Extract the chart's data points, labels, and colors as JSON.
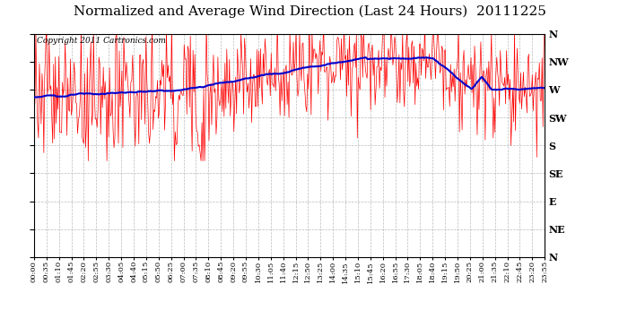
{
  "title": "Normalized and Average Wind Direction (Last 24 Hours)  20111225",
  "copyright": "Copyright 2011 Cartronics.com",
  "background_color": "#ffffff",
  "plot_bg_color": "#ffffff",
  "y_labels": [
    "N",
    "NW",
    "W",
    "SW",
    "S",
    "SE",
    "E",
    "NE",
    "N"
  ],
  "y_values": [
    360,
    315,
    270,
    225,
    180,
    135,
    90,
    45,
    0
  ],
  "ylim": [
    0,
    360
  ],
  "x_tick_labels": [
    "00:00",
    "00:35",
    "01:10",
    "01:45",
    "02:20",
    "02:55",
    "03:30",
    "04:05",
    "04:40",
    "05:15",
    "05:50",
    "06:25",
    "07:00",
    "07:35",
    "08:10",
    "08:45",
    "09:20",
    "09:55",
    "10:30",
    "11:05",
    "11:40",
    "12:15",
    "12:50",
    "13:25",
    "14:00",
    "14:35",
    "15:10",
    "15:45",
    "16:20",
    "16:55",
    "17:30",
    "18:05",
    "18:40",
    "19:15",
    "19:50",
    "20:25",
    "21:00",
    "21:35",
    "22:10",
    "22:45",
    "23:20",
    "23:55"
  ],
  "red_line_color": "#ff0000",
  "blue_line_color": "#0000cc",
  "grid_color": "#aaaaaa",
  "title_fontsize": 11,
  "copyright_fontsize": 6.5,
  "axis_label_fontsize": 8,
  "tick_fontsize": 6
}
